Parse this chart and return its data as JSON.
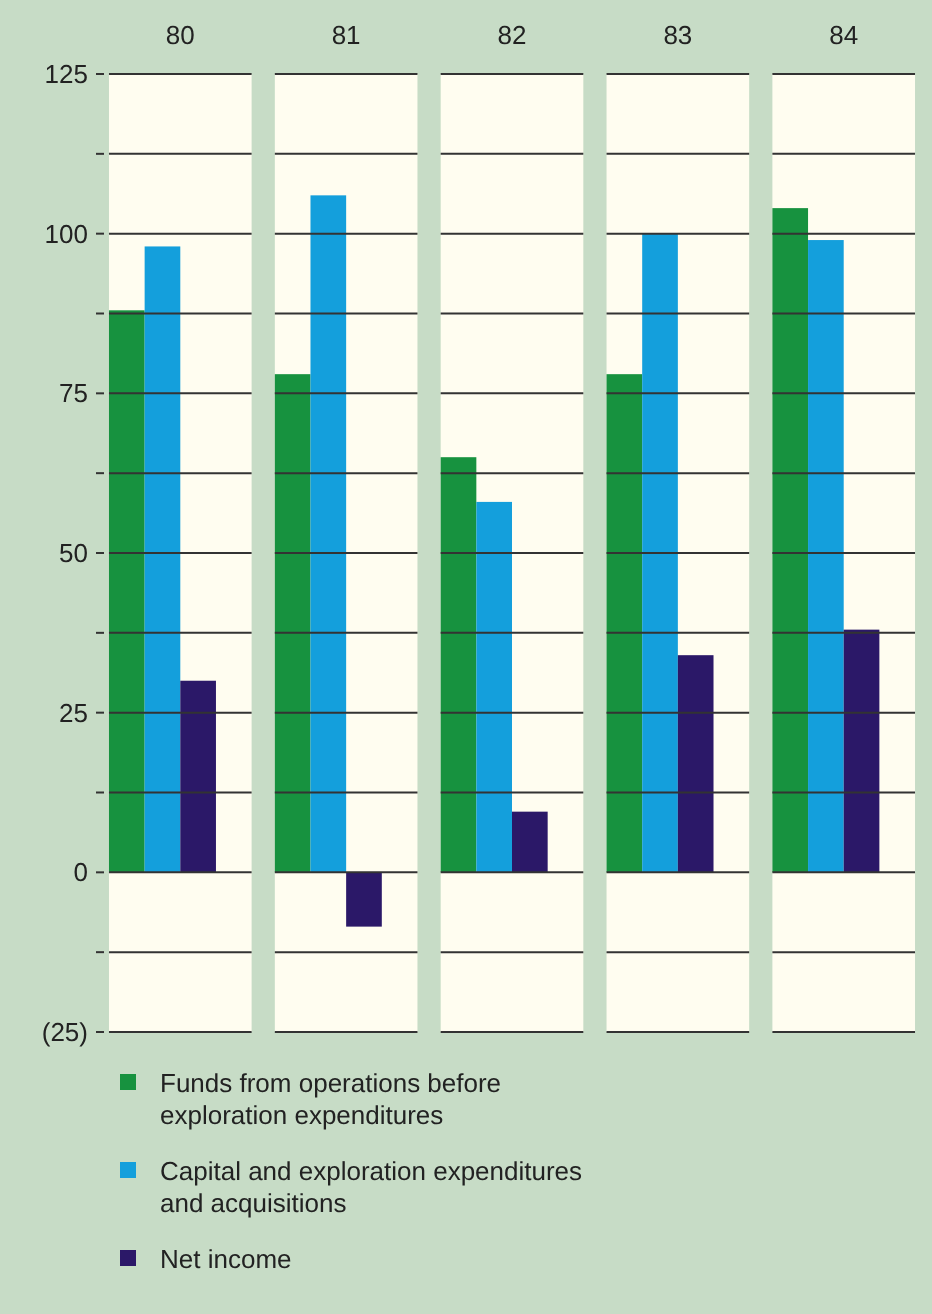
{
  "chart_data": {
    "type": "bar",
    "categories": [
      "80",
      "81",
      "82",
      "83",
      "84"
    ],
    "series": [
      {
        "name": "Funds from operations before exploration expenditures",
        "color": "#17923f",
        "values": [
          88,
          78,
          65,
          78,
          104
        ]
      },
      {
        "name": "Capital and exploration expenditures and acquisitions",
        "color": "#149fdc",
        "values": [
          98,
          106,
          58,
          100,
          99
        ]
      },
      {
        "name": "Net income",
        "color": "#2b1868",
        "values": [
          30,
          -8.5,
          9.5,
          34,
          38
        ]
      }
    ],
    "ylim": [
      -25,
      125
    ],
    "yticks": [
      {
        "value": -25,
        "label": "(25)"
      },
      {
        "value": -12.5,
        "label": null
      },
      0,
      {
        "value": 12.5,
        "label": null
      },
      25,
      {
        "value": 37.5,
        "label": null
      },
      50,
      {
        "value": 62.5,
        "label": null
      },
      75,
      {
        "value": 87.5,
        "label": null
      },
      100,
      {
        "value": 112.5,
        "label": null
      },
      125
    ],
    "grid": "y",
    "legend": "bottom"
  }
}
